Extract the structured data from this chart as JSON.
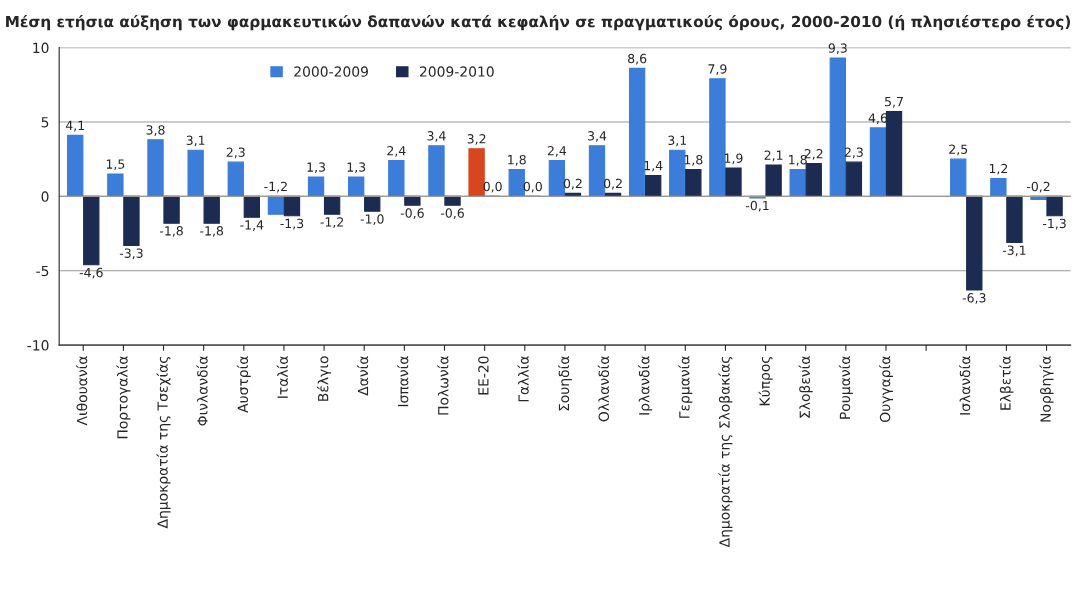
{
  "chart_data": {
    "type": "bar",
    "title": "Μέση ετήσια αύξηση των φαρμακευτικών δαπανών κατά κεφαλήν σε πραγματικούς όρους, 2000-2010 (ή πλησιέστερο έτος)",
    "categories": [
      "Λιθουανία",
      "Πορτογαλία",
      "Δημοκρατία της Τσεχίας",
      "Φινλανδία",
      "Αυστρία",
      "Ιταλία",
      "Βέλγιο",
      "Δανία",
      "Ισπανία",
      "Πολωνία",
      "ΕΕ-20",
      "Γαλλία",
      "Σουηδία",
      "Ολλανδία",
      "Ιρλανδία",
      "Γερμανία",
      "Δημοκρατία της Σλοβακίας",
      "Κύπρος",
      "Σλοβενία",
      "Ρουμανία",
      "Ουγγαρία",
      null,
      "Ισλανδία",
      "Ελβετία",
      "Νορβηγία"
    ],
    "series": [
      {
        "name": "2000-2009",
        "color": "#3b7dd8",
        "colors": [
          "#3b7dd8",
          "#3b7dd8",
          "#3b7dd8",
          "#3b7dd8",
          "#3b7dd8",
          "#3b7dd8",
          "#3b7dd8",
          "#3b7dd8",
          "#3b7dd8",
          "#3b7dd8",
          "#d8461f",
          "#3b7dd8",
          "#3b7dd8",
          "#3b7dd8",
          "#3b7dd8",
          "#3b7dd8",
          "#3b7dd8",
          "#3b7dd8",
          "#3b7dd8",
          "#3b7dd8",
          "#3b7dd8",
          "#3b7dd8",
          "#3b7dd8",
          "#3b7dd8",
          "#3b7dd8"
        ],
        "values": [
          4.1,
          1.5,
          3.8,
          3.1,
          2.3,
          -1.2,
          1.3,
          1.3,
          2.4,
          3.4,
          3.2,
          1.8,
          2.4,
          3.4,
          8.6,
          3.1,
          7.9,
          -0.1,
          1.8,
          9.3,
          4.6,
          null,
          2.5,
          1.2,
          -0.2
        ],
        "value_labels": [
          "4,1",
          "1,5",
          "3,8",
          "3,1",
          "2,3",
          "-1,2",
          "1,3",
          "1,3",
          "2,4",
          "3,4",
          "3,2",
          "1,8",
          "2,4",
          "3,4",
          "8,6",
          "3,1",
          "7,9",
          "-0,1",
          "1,8",
          "9,3",
          "4,6",
          null,
          "2,5",
          "1,2",
          "-0,2"
        ]
      },
      {
        "name": "2009-2010",
        "color": "#1b2b52",
        "values": [
          -4.6,
          -3.3,
          -1.8,
          -1.8,
          -1.4,
          -1.3,
          -1.2,
          -1.0,
          -0.6,
          -0.6,
          0.0,
          0.0,
          0.2,
          0.2,
          1.4,
          1.8,
          1.9,
          2.1,
          2.2,
          2.3,
          5.7,
          null,
          -6.3,
          -3.1,
          -1.3
        ],
        "value_labels": [
          "-4,6",
          "-3,3",
          "-1,8",
          "-1,8",
          "-1,4",
          "-1,3",
          "-1,2",
          "-1,0",
          "-0,6",
          "-0,6",
          "0,0",
          "0,0",
          "0,2",
          "0,2",
          "1,4",
          "1,8",
          "1,9",
          "2,1",
          "2,2",
          "2,3",
          "5,7",
          null,
          "-6,3",
          "-3,1",
          "-1,3"
        ]
      }
    ],
    "ylim": [
      -10,
      10
    ],
    "yticks": [
      -10,
      -5,
      0,
      5,
      10
    ],
    "grid": "y",
    "legend": "top"
  }
}
